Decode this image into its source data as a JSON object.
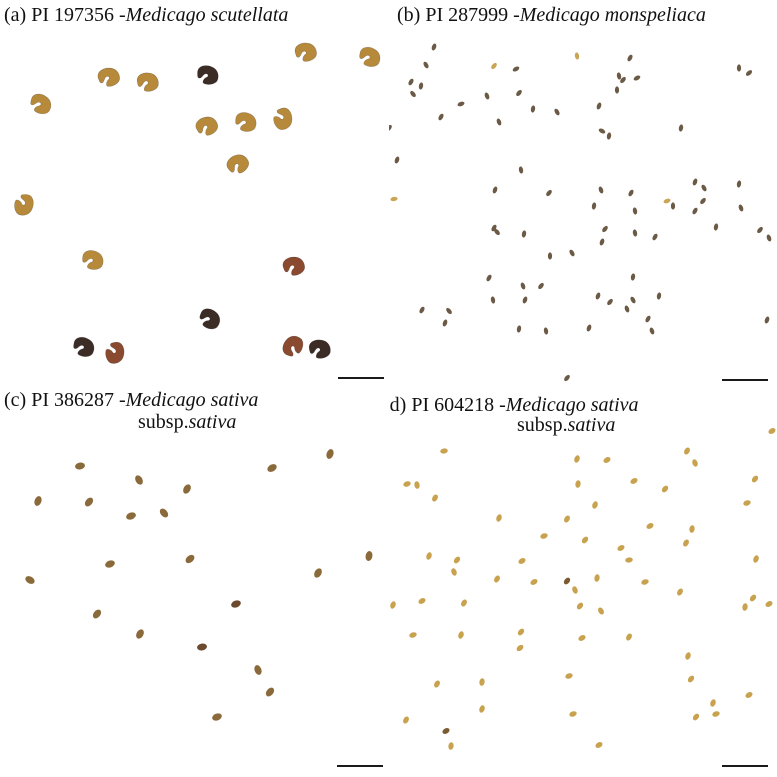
{
  "panels": {
    "a": {
      "caption_prefix": "(a) PI 197356 -",
      "species": "Medicago scutellata",
      "subspecies_prefix": "",
      "subspecies": ""
    },
    "b": {
      "caption_prefix": "(b) PI 287999 -",
      "species": "Medicago monspeliaca",
      "subspecies_prefix": "",
      "subspecies": ""
    },
    "c": {
      "caption_prefix": "(c) PI 386287 -",
      "species": "Medicago sativa",
      "subspecies_prefix": "subsp.",
      "subspecies": "sativa"
    },
    "d": {
      "caption_prefix": "(d) PI 604218 -",
      "species": "Medicago sativa",
      "subspecies_prefix": "subsp.",
      "subspecies": "sativa"
    }
  },
  "colors": {
    "scutellata_light": "#b7893a",
    "scutellata_dark": "#3b2c26",
    "monspeliaca": "#6b5a46",
    "sativa_c": "#8a6a3a",
    "sativa_d": "#c8a24e",
    "scalebar": "#1a1a1a"
  }
}
